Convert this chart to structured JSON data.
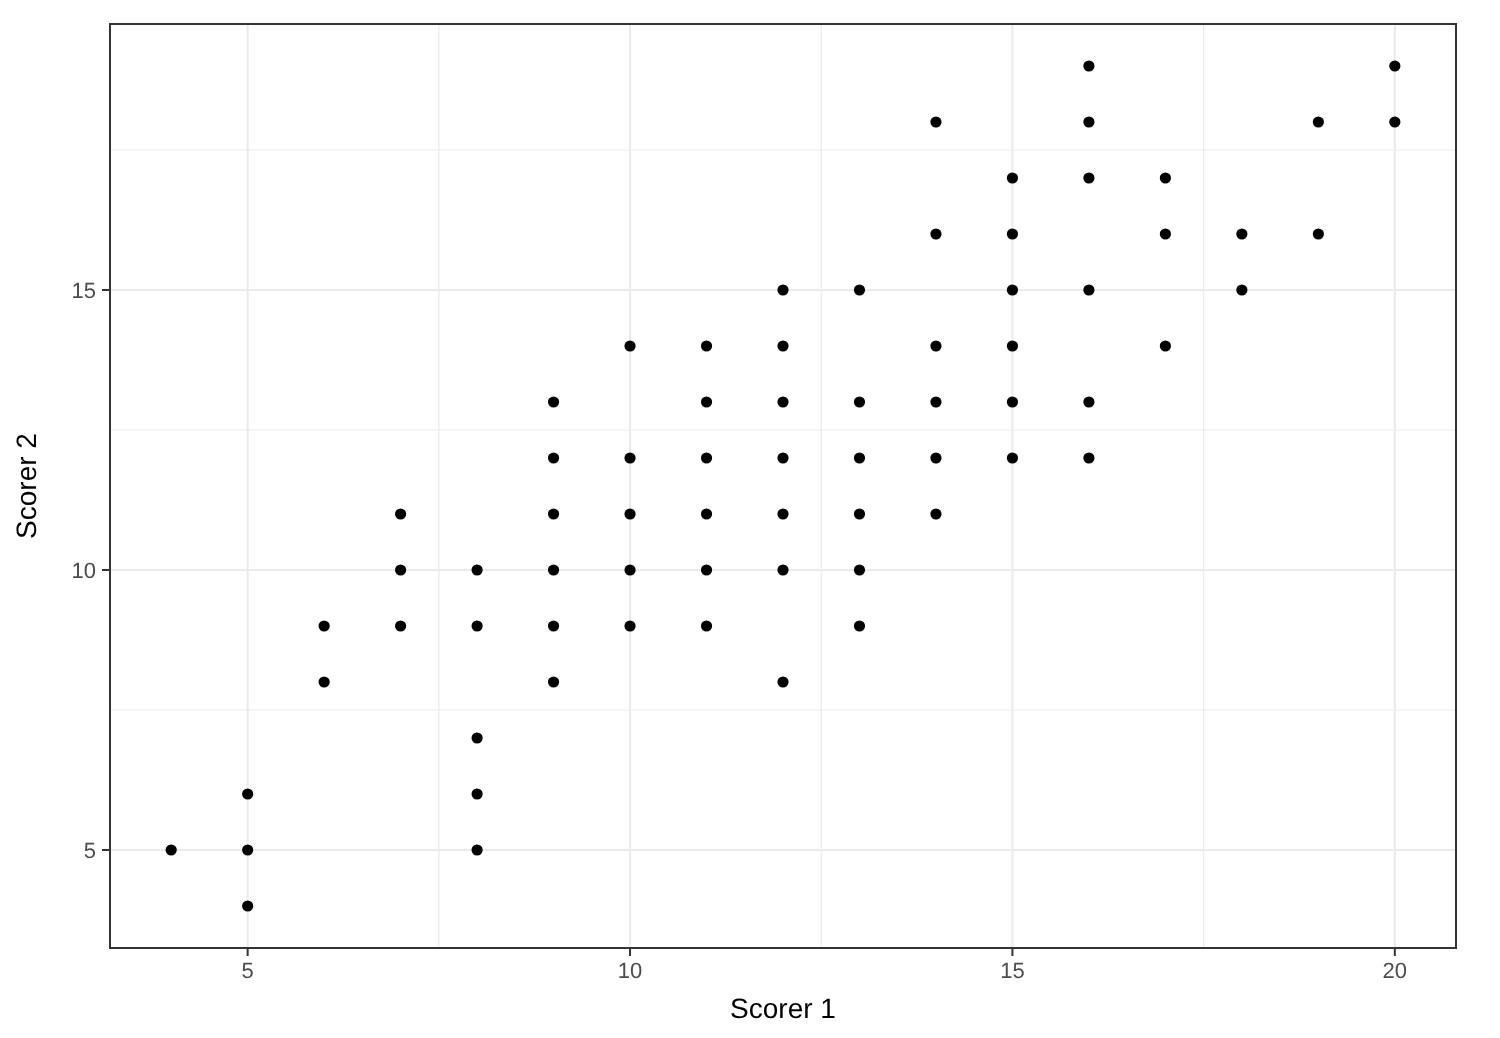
{
  "chart_data": {
    "type": "scatter",
    "xlabel": "Scorer 1",
    "ylabel": "Scorer 2",
    "xlim": [
      3.2,
      20.8
    ],
    "ylim": [
      3.25,
      19.75
    ],
    "xticks": [
      5,
      {
        "value": 7.5,
        "label": null
      },
      10,
      {
        "value": 12.5,
        "label": null
      },
      15,
      {
        "value": 17.5,
        "label": null
      },
      20
    ],
    "yticks": [
      5,
      {
        "value": 7.5,
        "label": null
      },
      10,
      {
        "value": 12.5,
        "label": null
      },
      15,
      {
        "value": 17.5,
        "label": null
      }
    ],
    "grid": true,
    "marker": "circle",
    "series": [
      {
        "color": "#000000",
        "x": [
          4,
          5,
          5,
          5,
          6,
          6,
          7,
          7,
          7,
          8,
          8,
          8,
          8,
          8,
          9,
          9,
          9,
          9,
          9,
          9,
          10,
          10,
          10,
          10,
          10,
          11,
          11,
          11,
          11,
          11,
          11,
          12,
          12,
          12,
          12,
          12,
          12,
          12,
          13,
          13,
          13,
          13,
          13,
          13,
          14,
          14,
          14,
          14,
          14,
          14,
          15,
          15,
          15,
          15,
          15,
          15,
          16,
          16,
          16,
          16,
          16,
          16,
          17,
          17,
          17,
          18,
          18,
          19,
          19,
          20,
          20
        ],
        "values": [
          5,
          6,
          5,
          4,
          9,
          8,
          11,
          10,
          9,
          10,
          9,
          7,
          6,
          5,
          13,
          12,
          11,
          10,
          9,
          8,
          14,
          12,
          11,
          10,
          9,
          14,
          13,
          12,
          11,
          10,
          9,
          15,
          14,
          13,
          12,
          11,
          10,
          8,
          15,
          13,
          12,
          11,
          10,
          9,
          18,
          16,
          14,
          13,
          12,
          11,
          17,
          16,
          15,
          14,
          13,
          12,
          19,
          18,
          17,
          15,
          13,
          12,
          17,
          16,
          14,
          16,
          15,
          18,
          16,
          19,
          18
        ]
      }
    ]
  }
}
